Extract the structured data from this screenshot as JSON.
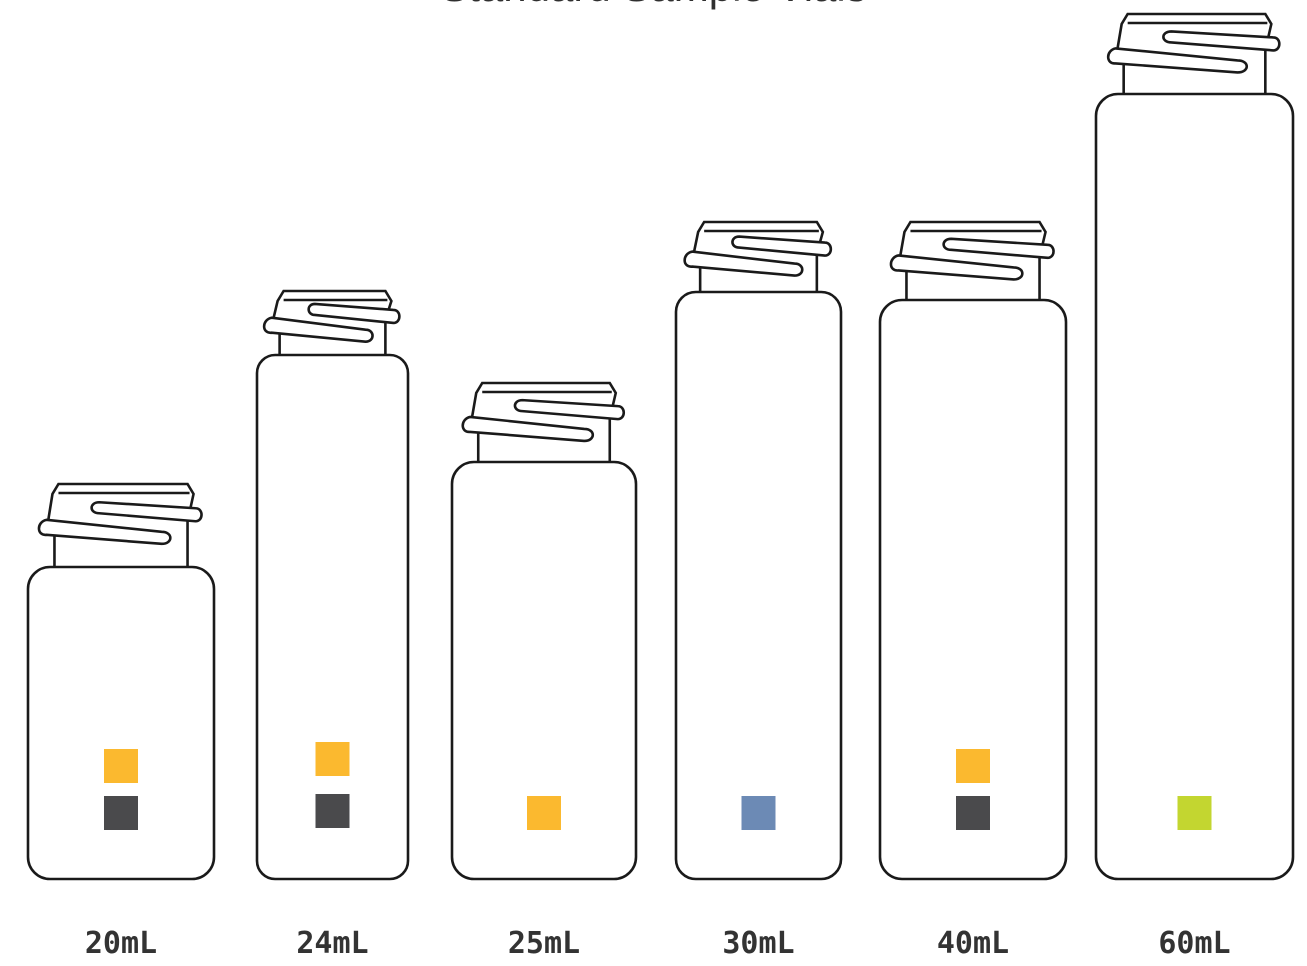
{
  "title": "Standard Sample Vials",
  "colors": {
    "yellow": "#fbb92f",
    "dark_gray": "#4a4a4c",
    "blue": "#6c8ab5",
    "lime": "#c3d630"
  },
  "vials": [
    {
      "label": "20mL",
      "swatches": [
        "yellow",
        "dark_gray"
      ]
    },
    {
      "label": "24mL",
      "swatches": [
        "yellow",
        "dark_gray"
      ]
    },
    {
      "label": "25mL",
      "swatches": [
        "yellow"
      ]
    },
    {
      "label": "30mL",
      "swatches": [
        "blue"
      ]
    },
    {
      "label": "40mL",
      "swatches": [
        "yellow",
        "dark_gray"
      ]
    },
    {
      "label": "60mL",
      "swatches": [
        "lime"
      ]
    }
  ]
}
